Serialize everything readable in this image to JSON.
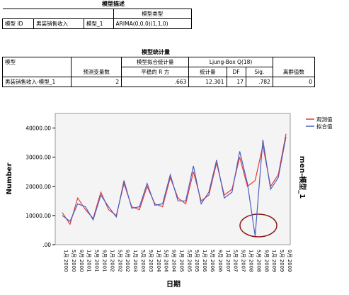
{
  "table1": {
    "title": "模型描述",
    "header": "模型类型",
    "row": [
      "模型 ID",
      "男装销售收入",
      "模型_1",
      "ARIMA(0,0,0)(1,1,0)"
    ]
  },
  "table2": {
    "title": "模型统计量",
    "h_model": "模型",
    "h_pred": "预测变量数",
    "h_fit": "模型拟合统计量",
    "h_r2": "平稳的 R 方",
    "h_lb": "Ljung-Box Q(18)",
    "h_stat": "统计量",
    "h_df": "DF",
    "h_sig": "Sig.",
    "h_out": "离群值数",
    "row": [
      "男装销售收入-模型_1",
      "2",
      ".663",
      "12.301",
      "17",
      ".782",
      "0"
    ]
  },
  "chart_data": {
    "type": "line",
    "ylabel": "Number",
    "xlabel": "日期",
    "side_label": "men-模型_1",
    "categories": [
      "1月 2000",
      "5月 2000",
      "9月 2000",
      "1月 2001",
      "5月 2001",
      "9月 2001",
      "1月 2002",
      "5月 2002",
      "9月 2002",
      "1月 2003",
      "5月 2003",
      "9月 2003",
      "1月 2004",
      "5月 2004",
      "9月 2004",
      "1月 2005",
      "5月 2005",
      "9月 2005",
      "1月 2006",
      "5月 2006",
      "9月 2006",
      "1月 2007",
      "5月 2007",
      "9月 2007",
      "1月 2008",
      "5月 2008",
      "9月 2008",
      "1月 2009",
      "5月 2009",
      "9月 2009"
    ],
    "series": [
      {
        "name": "观测值",
        "color": "#e8393a",
        "values": [
          11000,
          7000,
          16000,
          12000,
          9000,
          18000,
          12000,
          10000,
          21000,
          13000,
          12000,
          20000,
          14000,
          13000,
          23000,
          16000,
          14000,
          25000,
          15000,
          17000,
          28000,
          17000,
          19000,
          30000,
          20000,
          22000,
          34000,
          20000,
          24000,
          38000
        ]
      },
      {
        "name": "拟合值",
        "color": "#4a5fc1",
        "values": [
          10000,
          8000,
          14000,
          13000,
          8500,
          17000,
          13000,
          9500,
          22000,
          12500,
          13000,
          21000,
          13500,
          14000,
          24000,
          15000,
          15000,
          27000,
          14000,
          18000,
          29000,
          16000,
          18000,
          32000,
          21000,
          3000,
          36000,
          19000,
          23000,
          37000
        ]
      }
    ],
    "ylim": [
      0,
      45000
    ],
    "yticks": [
      {
        "value": 0,
        "label": ".00"
      },
      {
        "value": 10000,
        "label": "10000.00"
      },
      {
        "value": 20000,
        "label": "20000.00"
      },
      {
        "value": 30000,
        "label": "30000.00"
      },
      {
        "value": 40000,
        "label": "40000.00"
      }
    ]
  }
}
